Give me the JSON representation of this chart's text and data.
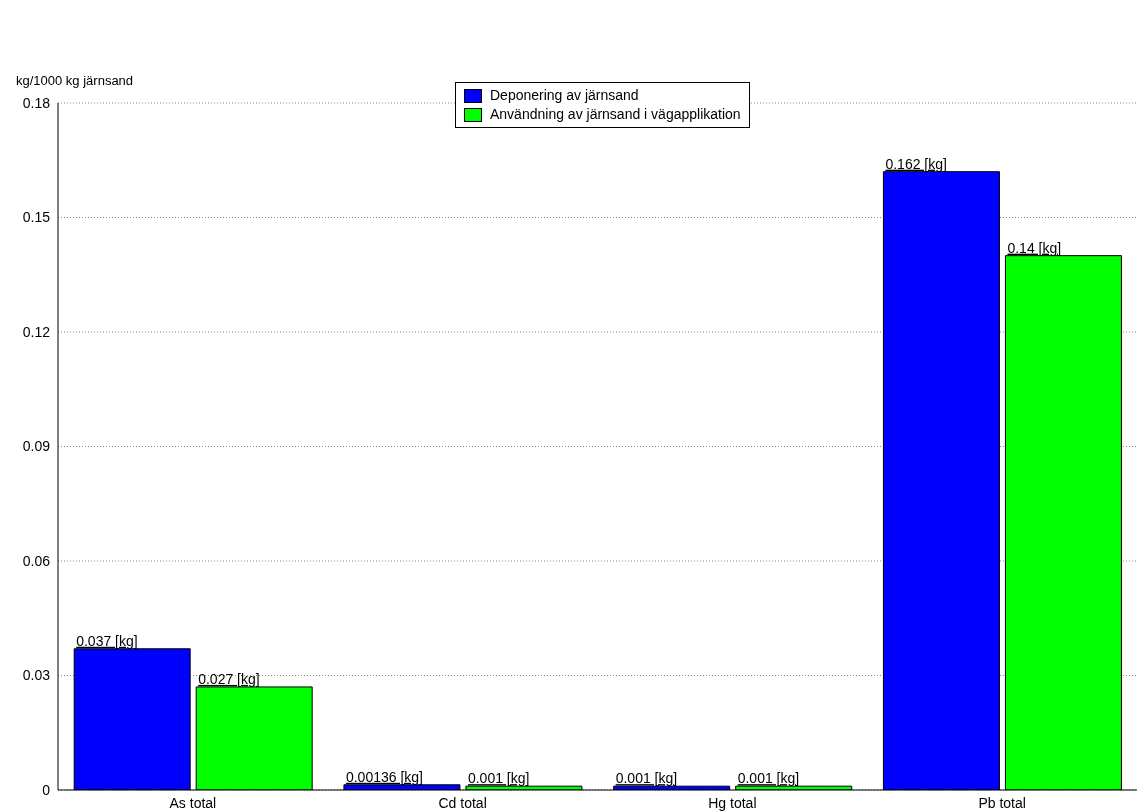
{
  "chart_data": {
    "type": "bar",
    "ylabel": "kg/1000 kg järnsand",
    "categories": [
      "As total",
      "Cd total",
      "Hg total",
      "Pb total"
    ],
    "series": [
      {
        "name": "Deponering av järnsand",
        "color": "#0000ff",
        "values": [
          0.037,
          0.00136,
          0.001,
          0.162
        ],
        "value_labels": [
          "0.037 [kg]",
          "0.00136 [kg]",
          "0.001 [kg]",
          "0.162 [kg]"
        ]
      },
      {
        "name": "Användning av järnsand i vägapplikation",
        "color": "#00ff00",
        "values": [
          0.027,
          0.001,
          0.001,
          0.14
        ],
        "value_labels": [
          "0.027 [kg]",
          "0.001 [kg]",
          "0.001 [kg]",
          "0.14 [kg]"
        ]
      }
    ],
    "ylim": [
      0,
      0.18
    ],
    "yticks": [
      0,
      0.03,
      0.06,
      0.09,
      0.12,
      0.15,
      0.18
    ],
    "grid": "y",
    "legend": "top"
  }
}
